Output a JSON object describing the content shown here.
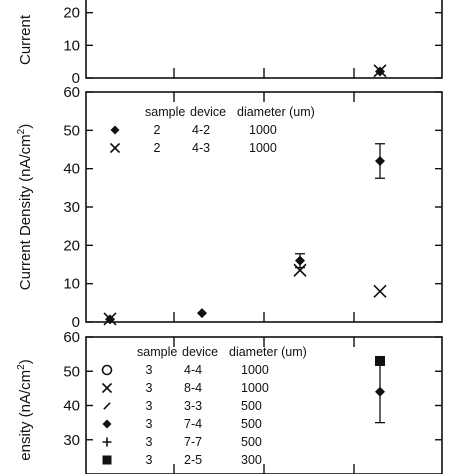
{
  "chart_data": [
    {
      "type": "scatter",
      "ylabel": "Current",
      "ylim": [
        0,
        30
      ],
      "yticks": [
        0,
        10,
        20
      ],
      "x_categories": 4,
      "series": [
        {
          "marker": "x",
          "points": [
            {
              "x": 3,
              "y": 2.2
            }
          ]
        },
        {
          "marker": "diamond",
          "points": [
            {
              "x": 3,
              "y": 2.0
            }
          ]
        }
      ]
    },
    {
      "type": "scatter",
      "ylabel": "Current Density (nA/cm",
      "ylabel_sup": "2",
      "ylabel_close": ")",
      "ylim": [
        0,
        60
      ],
      "yticks": [
        0,
        10,
        20,
        30,
        40,
        50,
        60
      ],
      "legend": {
        "headers": [
          "sample",
          "device",
          "diameter (um)"
        ],
        "rows": [
          {
            "marker": "diamond",
            "sample": "2",
            "device": "4-2",
            "diameter": "1000"
          },
          {
            "marker": "x",
            "sample": "2",
            "device": "4-3",
            "diameter": "1000"
          }
        ]
      },
      "series": [
        {
          "marker": "diamond",
          "points": [
            {
              "x": 0,
              "y": 0.7
            },
            {
              "x": 1,
              "y": 2.3
            },
            {
              "x": 2,
              "y": 16.0,
              "err": 1.8
            },
            {
              "x": 3,
              "y": 42.0,
              "err": 4.5
            }
          ]
        },
        {
          "marker": "x",
          "points": [
            {
              "x": 0,
              "y": 0.8
            },
            {
              "x": 2,
              "y": 13.5
            },
            {
              "x": 3,
              "y": 8.0
            }
          ]
        }
      ]
    },
    {
      "type": "scatter",
      "ylabel": "ensity (nA/cm",
      "ylabel_sup": "2",
      "ylabel_close": ")",
      "ylim": [
        20,
        60
      ],
      "yticks": [
        30,
        40,
        50,
        60
      ],
      "legend": {
        "headers": [
          "sample",
          "device",
          "diameter (um)"
        ],
        "rows": [
          {
            "marker": "circle",
            "sample": "3",
            "device": "4-4",
            "diameter": "1000"
          },
          {
            "marker": "x",
            "sample": "3",
            "device": "8-4",
            "diameter": "1000"
          },
          {
            "marker": "slash",
            "sample": "3",
            "device": "3-3",
            "diameter": "500"
          },
          {
            "marker": "diamond",
            "sample": "3",
            "device": "7-4",
            "diameter": "500"
          },
          {
            "marker": "plus",
            "sample": "3",
            "device": "7-7",
            "diameter": "500"
          },
          {
            "marker": "square",
            "sample": "3",
            "device": "2-5",
            "diameter": "300"
          }
        ]
      },
      "series": [
        {
          "marker": "diamond",
          "points": [
            {
              "x": 3,
              "y": 44.0,
              "err": 9.0
            }
          ]
        },
        {
          "marker": "square",
          "points": [
            {
              "x": 3,
              "y": 53.0
            }
          ]
        }
      ]
    }
  ]
}
